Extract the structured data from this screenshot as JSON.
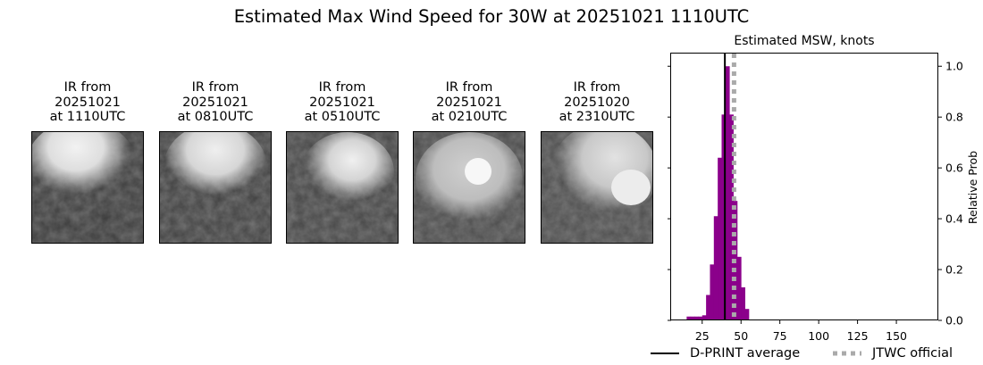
{
  "figure": {
    "title": "Estimated Max Wind Speed for 30W at 20251021 1110UTC"
  },
  "ir_panels": [
    {
      "label_line1": "IR from",
      "label_line2": "20251021",
      "label_line3": "at 1110UTC"
    },
    {
      "label_line1": "IR from",
      "label_line2": "20251021",
      "label_line3": "at 0810UTC"
    },
    {
      "label_line1": "IR from",
      "label_line2": "20251021",
      "label_line3": "at 0510UTC"
    },
    {
      "label_line1": "IR from",
      "label_line2": "20251021",
      "label_line3": "at 0210UTC"
    },
    {
      "label_line1": "IR from",
      "label_line2": "20251020",
      "label_line3": "at 2310UTC"
    }
  ],
  "chart_data": {
    "type": "bar",
    "title": "Estimated MSW, knots",
    "xlabel": "",
    "ylabel": "Relative Prob",
    "xlim": [
      5,
      177
    ],
    "ylim": [
      0,
      1.05
    ],
    "x_ticks": [
      25,
      50,
      75,
      100,
      125,
      150
    ],
    "y_ticks": [
      0.0,
      0.2,
      0.4,
      0.6,
      0.8,
      1.0
    ],
    "y_tick_labels": [
      "0.0",
      "0.2",
      "0.4",
      "0.6",
      "0.8",
      "1.0"
    ],
    "y_axis_side": "right",
    "bar_color": "#8b008b",
    "bin_width": 2.5,
    "bars": [
      {
        "x": 16.25,
        "value": 0.015
      },
      {
        "x": 18.75,
        "value": 0.015
      },
      {
        "x": 21.25,
        "value": 0.015
      },
      {
        "x": 23.75,
        "value": 0.015
      },
      {
        "x": 26.25,
        "value": 0.02
      },
      {
        "x": 28.75,
        "value": 0.1
      },
      {
        "x": 31.25,
        "value": 0.22
      },
      {
        "x": 33.75,
        "value": 0.41
      },
      {
        "x": 36.25,
        "value": 0.64
      },
      {
        "x": 38.75,
        "value": 0.81
      },
      {
        "x": 41.25,
        "value": 1.0
      },
      {
        "x": 43.75,
        "value": 0.81
      },
      {
        "x": 46.25,
        "value": 0.47
      },
      {
        "x": 48.75,
        "value": 0.25
      },
      {
        "x": 51.25,
        "value": 0.13
      },
      {
        "x": 53.75,
        "value": 0.045
      }
    ],
    "lines": [
      {
        "name": "D-PRINT average",
        "x": 39.6,
        "color": "#000000",
        "style": "solid"
      },
      {
        "name": "JTWC official",
        "x": 45.5,
        "color": "#aaaaaa",
        "style": "dotted"
      }
    ],
    "legend_position": "bottom-right"
  }
}
